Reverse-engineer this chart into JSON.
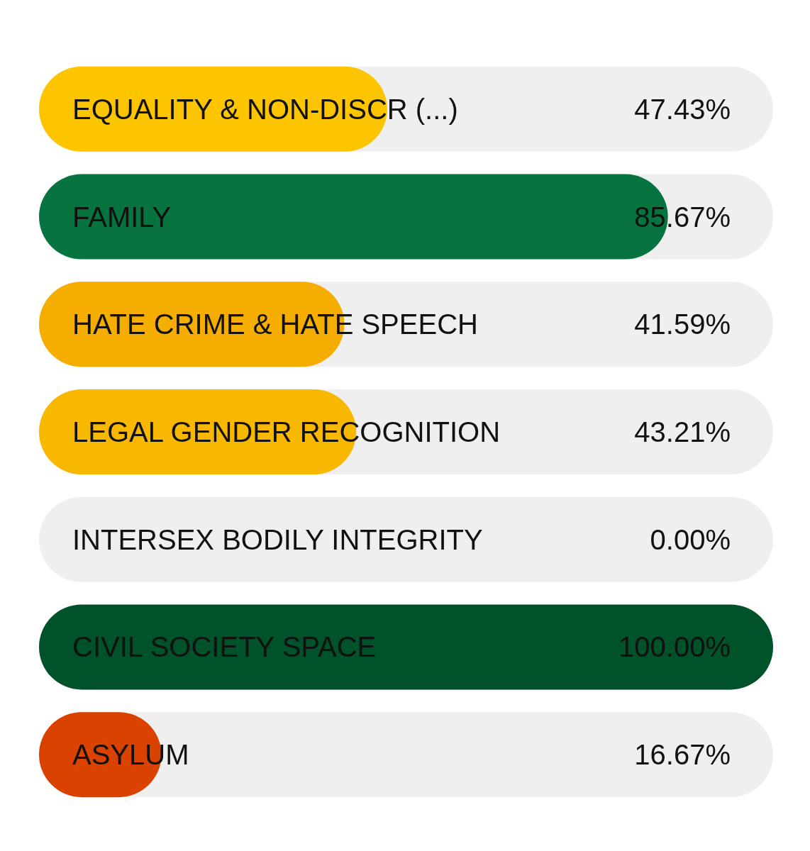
{
  "chart_data": {
    "type": "bar",
    "orientation": "horizontal",
    "categories": [
      "EQUALITY & NON-DISCR (...)",
      "FAMILY",
      "HATE CRIME & HATE SPEECH",
      "LEGAL GENDER RECOGNITION",
      "INTERSEX BODILY INTEGRITY",
      "CIVIL SOCIETY SPACE",
      "ASYLUM"
    ],
    "values": [
      47.43,
      85.67,
      41.59,
      43.21,
      0.0,
      100.0,
      16.67
    ],
    "value_labels": [
      "47.43%",
      "85.67%",
      "41.59%",
      "43.21%",
      "0.00%",
      "100.00%",
      "16.67%"
    ],
    "colors": [
      "#fcc500",
      "#077440",
      "#f5ae00",
      "#f9b800",
      "#f9b800",
      "#00522a",
      "#da4200"
    ]
  }
}
